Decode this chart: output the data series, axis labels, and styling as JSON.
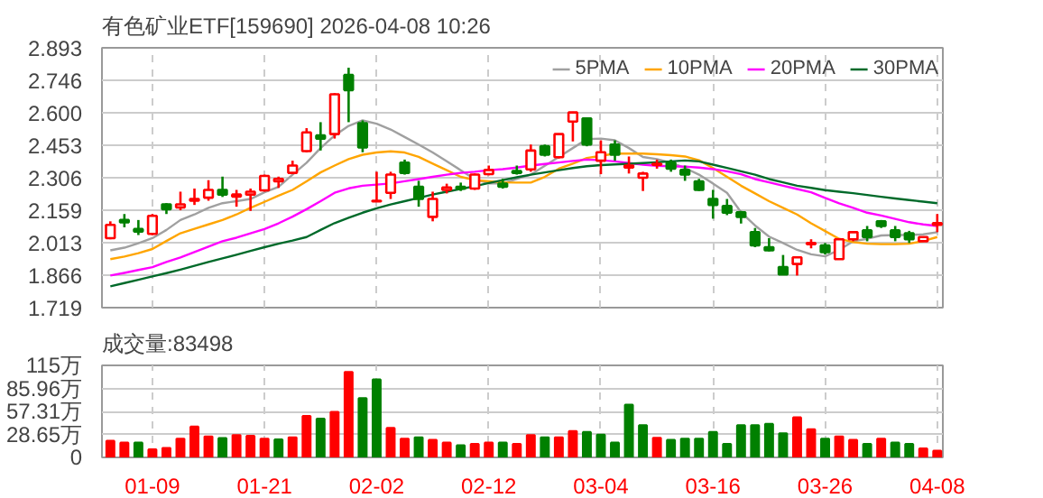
{
  "chart_data": [
    {
      "type": "candlestick",
      "title": "有色矿业ETF[159690] 2026-04-08 10:26",
      "ohlc": [
        [
          2.033,
          2.109,
          2.028,
          2.093
        ],
        [
          2.115,
          2.142,
          2.082,
          2.104
        ],
        [
          2.074,
          2.115,
          2.047,
          2.063
        ],
        [
          2.052,
          2.142,
          2.047,
          2.134
        ],
        [
          2.186,
          2.191,
          2.142,
          2.164
        ],
        [
          2.172,
          2.243,
          2.159,
          2.186
        ],
        [
          2.202,
          2.257,
          2.183,
          2.21
        ],
        [
          2.216,
          2.295,
          2.202,
          2.251
        ],
        [
          2.251,
          2.311,
          2.219,
          2.23
        ],
        [
          2.221,
          2.251,
          2.175,
          2.23
        ],
        [
          2.23,
          2.257,
          2.156,
          2.243
        ],
        [
          2.249,
          2.32,
          2.243,
          2.314
        ],
        [
          2.29,
          2.311,
          2.26,
          2.301
        ],
        [
          2.328,
          2.383,
          2.322,
          2.361
        ],
        [
          2.426,
          2.53,
          2.421,
          2.511
        ],
        [
          2.497,
          2.557,
          2.429,
          2.483
        ],
        [
          2.503,
          2.688,
          2.483,
          2.683
        ],
        [
          2.77,
          2.803,
          2.557,
          2.702
        ],
        [
          2.552,
          2.565,
          2.421,
          2.443
        ],
        [
          2.199,
          2.333,
          2.197,
          2.202
        ],
        [
          2.238,
          2.333,
          2.21,
          2.32
        ],
        [
          2.374,
          2.388,
          2.32,
          2.328
        ],
        [
          2.265,
          2.292,
          2.175,
          2.21
        ],
        [
          2.129,
          2.243,
          2.109,
          2.21
        ],
        [
          2.251,
          2.279,
          2.235,
          2.262
        ],
        [
          2.265,
          2.284,
          2.246,
          2.256
        ],
        [
          2.257,
          2.325,
          2.251,
          2.32
        ],
        [
          2.322,
          2.361,
          2.317,
          2.341
        ],
        [
          2.279,
          2.301,
          2.257,
          2.265
        ],
        [
          2.336,
          2.361,
          2.32,
          2.328
        ],
        [
          2.344,
          2.456,
          2.333,
          2.429
        ],
        [
          2.448,
          2.456,
          2.402,
          2.41
        ],
        [
          2.399,
          2.506,
          2.393,
          2.503
        ],
        [
          2.56,
          2.604,
          2.47,
          2.601
        ],
        [
          2.574,
          2.579,
          2.448,
          2.456
        ],
        [
          2.383,
          2.475,
          2.322,
          2.421
        ],
        [
          2.456,
          2.475,
          2.383,
          2.41
        ],
        [
          2.352,
          2.402,
          2.325,
          2.361
        ],
        [
          2.306,
          2.333,
          2.246,
          2.325
        ],
        [
          2.364,
          2.388,
          2.347,
          2.369
        ],
        [
          2.374,
          2.388,
          2.333,
          2.347
        ],
        [
          2.341,
          2.361,
          2.292,
          2.32
        ],
        [
          2.29,
          2.301,
          2.246,
          2.251
        ],
        [
          2.21,
          2.251,
          2.121,
          2.183
        ],
        [
          2.178,
          2.21,
          2.137,
          2.148
        ],
        [
          2.15,
          2.156,
          2.099,
          2.129
        ],
        [
          2.06,
          2.079,
          1.992,
          2.0
        ],
        [
          1.992,
          2.033,
          1.973,
          1.978
        ],
        [
          1.902,
          1.957,
          1.869,
          1.869
        ],
        [
          1.916,
          1.946,
          1.864,
          1.946
        ],
        [
          2.006,
          2.028,
          1.987,
          2.011
        ],
        [
          2.0,
          2.011,
          1.959,
          1.97
        ],
        [
          1.938,
          2.033,
          1.938,
          2.028
        ],
        [
          2.028,
          2.06,
          2.019,
          2.06
        ],
        [
          2.068,
          2.088,
          2.019,
          2.038
        ],
        [
          2.109,
          2.115,
          2.079,
          2.088
        ],
        [
          2.068,
          2.088,
          2.019,
          2.038
        ],
        [
          2.055,
          2.066,
          2.011,
          2.028
        ],
        [
          2.019,
          2.038,
          2.019,
          2.038
        ],
        [
          2.093,
          2.142,
          2.06,
          2.101
        ]
      ],
      "colors": [
        "#ff0000",
        "#008000",
        "#008000",
        "#ff0000",
        "#008000",
        "#ff0000",
        "#ff0000",
        "#ff0000",
        "#008000",
        "#ff0000",
        "#ff0000",
        "#ff0000",
        "#ff0000",
        "#ff0000",
        "#ff0000",
        "#008000",
        "#ff0000",
        "#008000",
        "#008000",
        "#ff0000",
        "#ff0000",
        "#008000",
        "#008000",
        "#ff0000",
        "#ff0000",
        "#008000",
        "#ff0000",
        "#ff0000",
        "#008000",
        "#008000",
        "#ff0000",
        "#008000",
        "#ff0000",
        "#ff0000",
        "#008000",
        "#ff0000",
        "#008000",
        "#ff0000",
        "#ff0000",
        "#ff0000",
        "#008000",
        "#008000",
        "#008000",
        "#008000",
        "#008000",
        "#008000",
        "#008000",
        "#008000",
        "#008000",
        "#ff0000",
        "#ff0000",
        "#008000",
        "#ff0000",
        "#ff0000",
        "#008000",
        "#008000",
        "#008000",
        "#008000",
        "#ff0000",
        "#ff0000"
      ],
      "series": [
        {
          "name": "5PMA",
          "type": "line",
          "color": "#a0a0a0",
          "values": [
            1.978,
            1.99,
            2.01,
            2.033,
            2.07,
            2.115,
            2.14,
            2.17,
            2.191,
            2.2,
            2.21,
            2.24,
            2.265,
            2.32,
            2.374,
            2.44,
            2.497,
            2.54,
            2.565,
            2.55,
            2.524,
            2.49,
            2.456,
            2.42,
            2.38,
            2.34,
            2.3,
            2.28,
            2.28,
            2.3,
            2.32,
            2.36,
            2.4,
            2.44,
            2.48,
            2.483,
            2.475,
            2.44,
            2.4,
            2.39,
            2.374,
            2.35,
            2.32,
            2.28,
            2.238,
            2.15,
            2.09,
            2.04,
            2.011,
            1.98,
            1.96,
            1.951,
            1.98,
            2.019,
            2.03,
            2.045,
            2.047,
            2.047,
            2.05,
            2.06
          ]
        },
        {
          "name": "10PMA",
          "type": "line",
          "color": "#ffa500",
          "values": [
            1.938,
            1.95,
            1.965,
            1.984,
            2.02,
            2.055,
            2.075,
            2.095,
            2.115,
            2.14,
            2.17,
            2.197,
            2.225,
            2.251,
            2.29,
            2.33,
            2.361,
            2.39,
            2.41,
            2.42,
            2.425,
            2.42,
            2.4,
            2.37,
            2.34,
            2.31,
            2.295,
            2.29,
            2.285,
            2.284,
            2.284,
            2.31,
            2.347,
            2.37,
            2.395,
            2.405,
            2.415,
            2.415,
            2.415,
            2.412,
            2.408,
            2.402,
            2.385,
            2.35,
            2.31,
            2.27,
            2.235,
            2.2,
            2.17,
            2.14,
            2.1,
            2.065,
            2.03,
            2.015,
            2.008,
            2.006,
            2.006,
            2.008,
            2.02,
            2.038
          ]
        },
        {
          "name": "20PMA",
          "type": "line",
          "color": "#ff00ff",
          "values": [
            1.864,
            1.876,
            1.889,
            1.902,
            1.925,
            1.946,
            1.97,
            1.995,
            2.019,
            2.035,
            2.055,
            2.074,
            2.1,
            2.13,
            2.164,
            2.2,
            2.238,
            2.258,
            2.27,
            2.275,
            2.28,
            2.29,
            2.3,
            2.31,
            2.32,
            2.328,
            2.333,
            2.34,
            2.345,
            2.352,
            2.361,
            2.368,
            2.375,
            2.382,
            2.388,
            2.385,
            2.38,
            2.372,
            2.365,
            2.36,
            2.358,
            2.356,
            2.352,
            2.345,
            2.335,
            2.322,
            2.3,
            2.285,
            2.27,
            2.255,
            2.24,
            2.215,
            2.19,
            2.17,
            2.148,
            2.135,
            2.12,
            2.105,
            2.095,
            2.088
          ]
        },
        {
          "name": "30PMA",
          "type": "line",
          "color": "#006a2a",
          "values": [
            1.815,
            1.83,
            1.845,
            1.86,
            1.875,
            1.891,
            1.908,
            1.925,
            1.942,
            1.958,
            1.975,
            1.992,
            2.008,
            2.022,
            2.038,
            2.07,
            2.101,
            2.125,
            2.148,
            2.168,
            2.185,
            2.2,
            2.215,
            2.23,
            2.243,
            2.255,
            2.268,
            2.282,
            2.295,
            2.308,
            2.32,
            2.33,
            2.34,
            2.35,
            2.358,
            2.363,
            2.366,
            2.369,
            2.372,
            2.376,
            2.38,
            2.384,
            2.38,
            2.365,
            2.35,
            2.335,
            2.32,
            2.3,
            2.285,
            2.27,
            2.26,
            2.25,
            2.243,
            2.236,
            2.228,
            2.22,
            2.212,
            2.205,
            2.198,
            2.191
          ]
        }
      ],
      "ylim": [
        1.719,
        2.893
      ],
      "yticks": [
        1.719,
        1.866,
        2.013,
        2.159,
        2.306,
        2.453,
        {
          "value": 2.6,
          "label": "2.600"
        },
        2.746,
        2.893
      ],
      "grid": true,
      "legend": "top right",
      "tick_labels": "y"
    },
    {
      "type": "bar",
      "title": "成交量:83498",
      "categories": [
        null,
        null,
        null,
        "01-09",
        null,
        null,
        null,
        null,
        null,
        null,
        null,
        "01-21",
        null,
        null,
        null,
        null,
        null,
        null,
        null,
        "02-02",
        null,
        null,
        null,
        null,
        null,
        null,
        null,
        "02-12",
        null,
        null,
        null,
        null,
        null,
        null,
        null,
        "03-04",
        null,
        null,
        null,
        null,
        null,
        null,
        null,
        "03-16",
        null,
        null,
        null,
        null,
        null,
        null,
        null,
        "03-26",
        null,
        null,
        null,
        null,
        null,
        null,
        null,
        "04-08"
      ],
      "values": [
        20.6,
        18.3,
        18.3,
        10.0,
        11.7,
        23.3,
        38.3,
        26.1,
        23.9,
        27.8,
        26.7,
        23.3,
        22.2,
        25,
        51.7,
        48.3,
        56.7,
        106.7,
        73.9,
        97.2,
        36.7,
        23.3,
        25,
        21.7,
        18.3,
        15,
        16.7,
        18.3,
        18.3,
        16.7,
        27.8,
        25,
        25,
        32.8,
        31.7,
        28.3,
        18.3,
        65.6,
        40,
        24.4,
        21.7,
        23.3,
        23.3,
        31.7,
        16.7,
        40,
        40,
        41.7,
        30,
        50,
        35,
        23.3,
        26.1,
        21.7,
        16.7,
        23.3,
        18.3,
        16.7,
        11.1,
        8.3
      ],
      "colors": [
        "#ff0000",
        "#ff0000",
        "#008000",
        "#ff0000",
        "#ff0000",
        "#ff0000",
        "#ff0000",
        "#ff0000",
        "#008000",
        "#ff0000",
        "#ff0000",
        "#ff0000",
        "#008000",
        "#ff0000",
        "#ff0000",
        "#008000",
        "#ff0000",
        "#ff0000",
        "#008000",
        "#008000",
        "#ff0000",
        "#ff0000",
        "#008000",
        "#ff0000",
        "#ff0000",
        "#008000",
        "#ff0000",
        "#ff0000",
        "#008000",
        "#ff0000",
        "#ff0000",
        "#008000",
        "#ff0000",
        "#ff0000",
        "#008000",
        "#008000",
        "#008000",
        "#008000",
        "#008000",
        "#ff0000",
        "#008000",
        "#008000",
        "#008000",
        "#008000",
        "#008000",
        "#008000",
        "#008000",
        "#008000",
        "#008000",
        "#ff0000",
        "#ff0000",
        "#008000",
        "#ff0000",
        "#ff0000",
        "#008000",
        "#ff0000",
        "#008000",
        "#008000",
        "#ff0000",
        "#ff0000"
      ],
      "ylim": [
        0,
        115
      ],
      "yticks": [
        0,
        {
          "value": 28.65,
          "label": "28.65万"
        },
        {
          "value": 57.31,
          "label": "57.31万"
        },
        {
          "value": 85.96,
          "label": "85.96万"
        },
        {
          "value": 115,
          "label": "115万"
        }
      ],
      "grid": true
    }
  ]
}
